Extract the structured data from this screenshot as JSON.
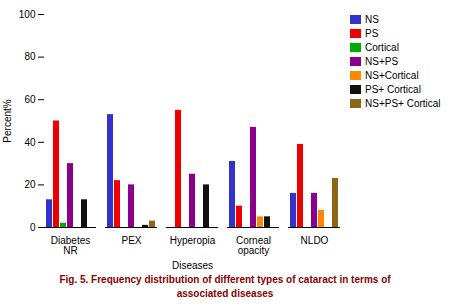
{
  "chart_data": {
    "type": "bar",
    "categories": [
      "Diabetes NR",
      "PEX",
      "Hyperopia",
      "Corneal opacity",
      "NLDO"
    ],
    "series": [
      {
        "name": "NS",
        "color": "#3333CC",
        "values": [
          13,
          53,
          0,
          31,
          16
        ]
      },
      {
        "name": "PS",
        "color": "#EE0000",
        "values": [
          50,
          22,
          55,
          10,
          39
        ]
      },
      {
        "name": "Cortical",
        "color": "#00AA00",
        "values": [
          2,
          0,
          0,
          0,
          0
        ]
      },
      {
        "name": "NS+PS",
        "color": "#8B008B",
        "values": [
          30,
          20,
          25,
          47,
          16
        ]
      },
      {
        "name": "NS+Cortical",
        "color": "#FF8800",
        "values": [
          0,
          0,
          0,
          5,
          8
        ]
      },
      {
        "name": "PS+ Cortical",
        "color": "#111111",
        "values": [
          13,
          1,
          20,
          5,
          0
        ]
      },
      {
        "name": "NS+PS+ Cortical",
        "color": "#8B6914",
        "values": [
          0,
          3,
          0,
          0,
          23
        ]
      }
    ],
    "xlabel": "Diseases",
    "ylabel": "Percent%",
    "ylim": [
      0,
      100
    ],
    "yticks": [
      0,
      20,
      40,
      60,
      80,
      100
    ],
    "grid": false,
    "legend": "right",
    "annotations": [
      {
        "text": "Fig. 5. Frequency distribution of different types of cataract in terms of",
        "color": "#8B0000"
      },
      {
        "text": "associated diseases",
        "color": "#8B0000"
      }
    ]
  }
}
